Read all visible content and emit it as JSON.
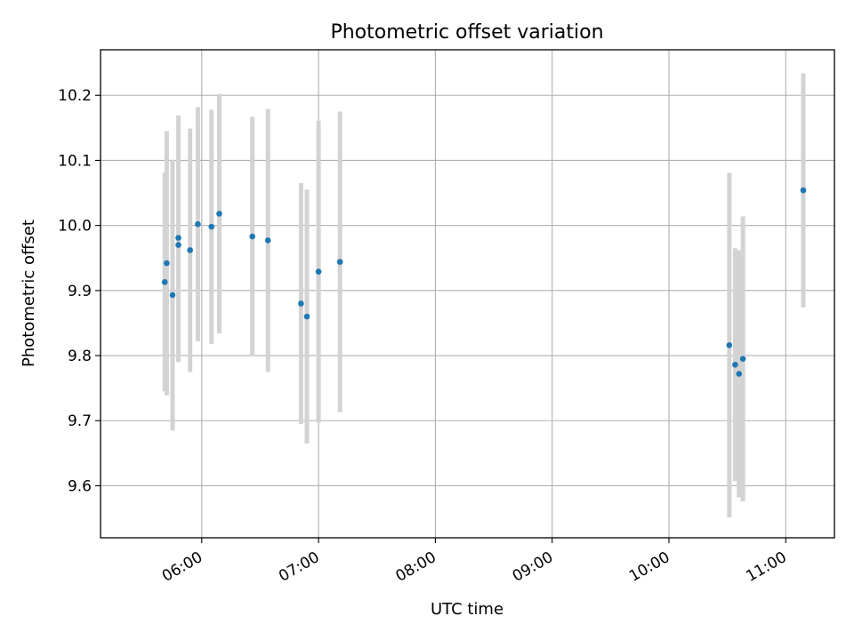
{
  "chart_data": {
    "type": "scatter",
    "title": "Photometric offset variation",
    "xlabel": "UTC time",
    "ylabel": "Photometric offset",
    "x_axis_type": "time",
    "xlim": [
      "05:08",
      "11:25"
    ],
    "ylim": [
      9.52,
      10.27
    ],
    "x_ticks": [
      "06:00",
      "07:00",
      "08:00",
      "09:00",
      "10:00",
      "11:00"
    ],
    "y_ticks": [
      9.6,
      9.7,
      9.8,
      9.9,
      10.0,
      10.1,
      10.2
    ],
    "y_tick_labels": [
      "9.6",
      "9.7",
      "9.8",
      "9.9",
      "10.0",
      "10.1",
      "10.2"
    ],
    "grid": true,
    "colors": {
      "points": "#1f77b4",
      "error_bars": "#d3d3d3",
      "grid": "#b0b0b0"
    },
    "series": [
      {
        "error_type": "symmetric",
        "points": [
          {
            "x": "05:41",
            "y": 9.913,
            "err": 0.168
          },
          {
            "x": "05:42",
            "y": 9.942,
            "err": 0.203
          },
          {
            "x": "05:45",
            "y": 9.893,
            "err": 0.208
          },
          {
            "x": "05:48",
            "y": 9.97,
            "err": 0.18
          },
          {
            "x": "05:48",
            "y": 9.981,
            "err": 0.188
          },
          {
            "x": "05:54",
            "y": 9.962,
            "err": 0.187
          },
          {
            "x": "05:58",
            "y": 10.002,
            "err": 0.18
          },
          {
            "x": "06:05",
            "y": 9.998,
            "err": 0.18
          },
          {
            "x": "06:09",
            "y": 10.018,
            "err": 0.184
          },
          {
            "x": "06:26",
            "y": 9.983,
            "err": 0.184
          },
          {
            "x": "06:34",
            "y": 9.977,
            "err": 0.202
          },
          {
            "x": "06:51",
            "y": 9.88,
            "err": 0.185
          },
          {
            "x": "06:54",
            "y": 9.86,
            "err": 0.195
          },
          {
            "x": "07:00",
            "y": 9.929,
            "err": 0.232
          },
          {
            "x": "07:11",
            "y": 9.944,
            "err": 0.231
          },
          {
            "x": "10:31",
            "y": 9.816,
            "err": 0.265
          },
          {
            "x": "10:34",
            "y": 9.786,
            "err": 0.179
          },
          {
            "x": "10:36",
            "y": 9.772,
            "err": 0.19
          },
          {
            "x": "10:38",
            "y": 9.795,
            "err": 0.219
          },
          {
            "x": "11:09",
            "y": 10.054,
            "err": 0.18
          }
        ]
      }
    ]
  }
}
